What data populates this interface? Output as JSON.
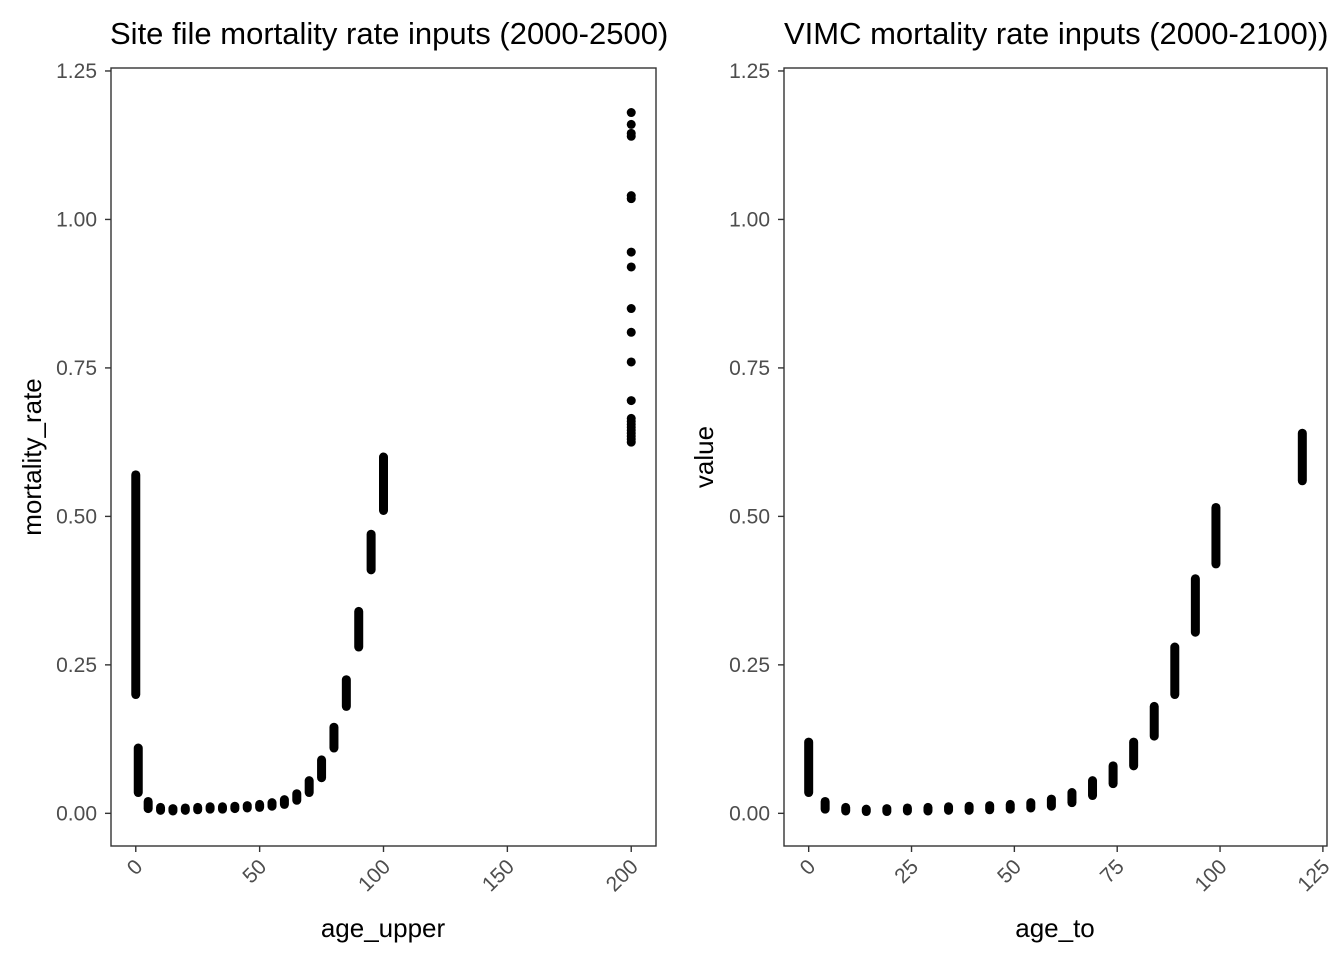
{
  "chart_data": [
    {
      "type": "scatter",
      "title": "Site file mortality rate inputs (2000-2500)",
      "xlabel": "age_upper",
      "ylabel": "mortality_rate",
      "xlim": [
        -10,
        210
      ],
      "ylim": [
        -0.055,
        1.255
      ],
      "xticks": [
        0,
        50,
        100,
        150,
        200
      ],
      "yticks": [
        0,
        0.25,
        0.5,
        0.75,
        1.0,
        1.25
      ],
      "xtick_labels": [
        "0",
        "50",
        "100",
        "150",
        "200"
      ],
      "ytick_labels": [
        "0.00",
        "0.25",
        "0.50",
        "0.75",
        "1.00",
        "1.25"
      ],
      "grid": false,
      "legend": "none",
      "point_color": "#000000",
      "columns": [
        {
          "x": 0,
          "ymin": 0.2,
          "ymax": 0.57
        },
        {
          "x": 1,
          "ymin": 0.035,
          "ymax": 0.11
        },
        {
          "x": 5,
          "ymin": 0.008,
          "ymax": 0.02
        },
        {
          "x": 10,
          "ymin": 0.005,
          "ymax": 0.01
        },
        {
          "x": 15,
          "ymin": 0.004,
          "ymax": 0.008
        },
        {
          "x": 20,
          "ymin": 0.005,
          "ymax": 0.009
        },
        {
          "x": 25,
          "ymin": 0.006,
          "ymax": 0.01
        },
        {
          "x": 30,
          "ymin": 0.007,
          "ymax": 0.011
        },
        {
          "x": 35,
          "ymin": 0.007,
          "ymax": 0.011
        },
        {
          "x": 40,
          "ymin": 0.008,
          "ymax": 0.012
        },
        {
          "x": 45,
          "ymin": 0.009,
          "ymax": 0.013
        },
        {
          "x": 50,
          "ymin": 0.01,
          "ymax": 0.015
        },
        {
          "x": 55,
          "ymin": 0.012,
          "ymax": 0.018
        },
        {
          "x": 60,
          "ymin": 0.015,
          "ymax": 0.023
        },
        {
          "x": 65,
          "ymin": 0.022,
          "ymax": 0.033
        },
        {
          "x": 70,
          "ymin": 0.035,
          "ymax": 0.055
        },
        {
          "x": 75,
          "ymin": 0.06,
          "ymax": 0.09
        },
        {
          "x": 80,
          "ymin": 0.11,
          "ymax": 0.145
        },
        {
          "x": 85,
          "ymin": 0.18,
          "ymax": 0.225
        },
        {
          "x": 90,
          "ymin": 0.28,
          "ymax": 0.34
        },
        {
          "x": 95,
          "ymin": 0.41,
          "ymax": 0.47
        },
        {
          "x": 100,
          "ymin": 0.51,
          "ymax": 0.6
        }
      ],
      "points": [
        {
          "x": 200,
          "y": 1.18
        },
        {
          "x": 200,
          "y": 1.16
        },
        {
          "x": 200,
          "y": 1.145
        },
        {
          "x": 200,
          "y": 1.14
        },
        {
          "x": 200,
          "y": 1.04
        },
        {
          "x": 200,
          "y": 1.035
        },
        {
          "x": 200,
          "y": 0.945
        },
        {
          "x": 200,
          "y": 0.92
        },
        {
          "x": 200,
          "y": 0.85
        },
        {
          "x": 200,
          "y": 0.81
        },
        {
          "x": 200,
          "y": 0.76
        },
        {
          "x": 200,
          "y": 0.695
        },
        {
          "x": 200,
          "y": 0.665
        },
        {
          "x": 200,
          "y": 0.66
        },
        {
          "x": 200,
          "y": 0.655
        },
        {
          "x": 200,
          "y": 0.65
        },
        {
          "x": 200,
          "y": 0.645
        },
        {
          "x": 200,
          "y": 0.64
        },
        {
          "x": 200,
          "y": 0.635
        },
        {
          "x": 200,
          "y": 0.63
        },
        {
          "x": 200,
          "y": 0.625
        }
      ]
    },
    {
      "type": "scatter",
      "title": "VIMC mortality rate inputs (2000-2100))",
      "xlabel": "age_to",
      "ylabel": "value",
      "xlim": [
        -6,
        126
      ],
      "ylim": [
        -0.055,
        1.255
      ],
      "xticks": [
        0,
        25,
        50,
        75,
        100,
        125
      ],
      "yticks": [
        0,
        0.25,
        0.5,
        0.75,
        1.0,
        1.25
      ],
      "xtick_labels": [
        "0",
        "25",
        "50",
        "75",
        "100",
        "125"
      ],
      "ytick_labels": [
        "0.00",
        "0.25",
        "0.50",
        "0.75",
        "1.00",
        "1.25"
      ],
      "grid": false,
      "legend": "none",
      "point_color": "#000000",
      "columns": [
        {
          "x": 0,
          "ymin": 0.035,
          "ymax": 0.12
        },
        {
          "x": 4,
          "ymin": 0.007,
          "ymax": 0.02
        },
        {
          "x": 9,
          "ymin": 0.004,
          "ymax": 0.01
        },
        {
          "x": 14,
          "ymin": 0.003,
          "ymax": 0.007
        },
        {
          "x": 19,
          "ymin": 0.003,
          "ymax": 0.008
        },
        {
          "x": 24,
          "ymin": 0.004,
          "ymax": 0.009
        },
        {
          "x": 29,
          "ymin": 0.004,
          "ymax": 0.01
        },
        {
          "x": 34,
          "ymin": 0.005,
          "ymax": 0.011
        },
        {
          "x": 39,
          "ymin": 0.005,
          "ymax": 0.012
        },
        {
          "x": 44,
          "ymin": 0.006,
          "ymax": 0.013
        },
        {
          "x": 49,
          "ymin": 0.007,
          "ymax": 0.015
        },
        {
          "x": 54,
          "ymin": 0.009,
          "ymax": 0.018
        },
        {
          "x": 59,
          "ymin": 0.012,
          "ymax": 0.024
        },
        {
          "x": 64,
          "ymin": 0.018,
          "ymax": 0.035
        },
        {
          "x": 69,
          "ymin": 0.03,
          "ymax": 0.055
        },
        {
          "x": 74,
          "ymin": 0.05,
          "ymax": 0.08
        },
        {
          "x": 79,
          "ymin": 0.08,
          "ymax": 0.12
        },
        {
          "x": 84,
          "ymin": 0.13,
          "ymax": 0.18
        },
        {
          "x": 89,
          "ymin": 0.2,
          "ymax": 0.28
        },
        {
          "x": 94,
          "ymin": 0.305,
          "ymax": 0.395
        },
        {
          "x": 99,
          "ymin": 0.42,
          "ymax": 0.515
        },
        {
          "x": 120,
          "ymin": 0.56,
          "ymax": 0.64
        }
      ],
      "points": []
    }
  ]
}
